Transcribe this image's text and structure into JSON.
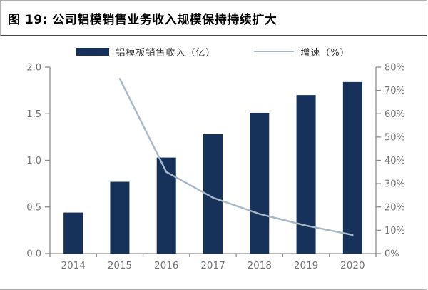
{
  "figure": {
    "title": "图 19: 公司铝模销售业务收入规模保持持续扩大"
  },
  "chart_data": {
    "type": "bar",
    "subtype": "bar-line-combo",
    "title": "图 19: 公司铝模销售业务收入规模保持持续扩大",
    "categories": [
      "2014",
      "2015",
      "2016",
      "2017",
      "2018",
      "2019",
      "2020"
    ],
    "series": [
      {
        "name": "铝模板销售收入（亿）",
        "type": "bar",
        "axis": "left",
        "values": [
          0.44,
          0.77,
          1.03,
          1.28,
          1.51,
          1.7,
          1.84
        ],
        "color": "#16325B"
      },
      {
        "name": "增速（%）",
        "type": "line",
        "axis": "right",
        "values": [
          null,
          75,
          35,
          24,
          17,
          12,
          8
        ],
        "color": "#A6B7C9"
      }
    ],
    "left_axis": {
      "min": 0,
      "max": 2.0,
      "step": 0.5,
      "tick_labels": [
        "0.0",
        "0.5",
        "1.0",
        "1.5",
        "2.0"
      ]
    },
    "right_axis": {
      "min": 0,
      "max": 80,
      "step": 10,
      "tick_labels": [
        "0%",
        "10%",
        "20%",
        "30%",
        "40%",
        "50%",
        "60%",
        "70%",
        "80%"
      ]
    },
    "legend_position": "top",
    "grid": false,
    "colors": {
      "axis": "#8C8C8C",
      "tick_label": "#757575",
      "legend_text": "#333333"
    }
  }
}
